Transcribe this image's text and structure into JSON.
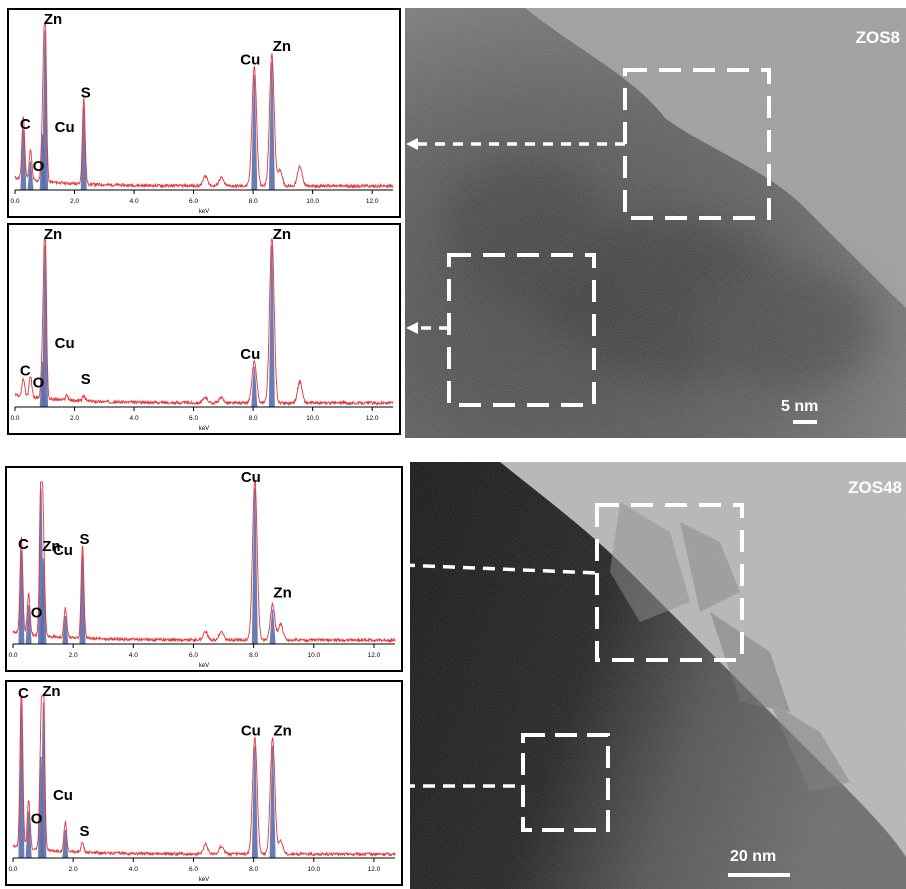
{
  "figures": [
    {
      "id": "zos8",
      "sample_label": "ZOS8",
      "scale_bar_label": "5 nm",
      "tem_tone": "light",
      "spectra": [
        {
          "x_axis_title": "keV",
          "chart_data": {
            "type": "line",
            "xlabel": "keV",
            "xlim": [
              0,
              12.7
            ],
            "x_ticks": [
              "0.0",
              "2.0",
              "4.0",
              "6.0",
              "8.0",
              "10.0",
              "12.0"
            ],
            "peaks_kev": [
              0.28,
              0.52,
              0.93,
              1.01,
              2.31,
              6.4,
              6.93,
              8.04,
              8.63,
              8.9,
              9.57
            ],
            "peak_heights": [
              0.38,
              0.18,
              0.35,
              1.0,
              0.52,
              0.06,
              0.05,
              0.72,
              0.8,
              0.1,
              0.12
            ],
            "annotations": [
              {
                "text": "Zn",
                "kev": 1.01
              },
              {
                "text": "C",
                "kev": 0.28
              },
              {
                "text": "O",
                "kev": 0.52
              },
              {
                "text": "Cu",
                "kev": 0.93
              },
              {
                "text": "S",
                "kev": 2.31
              },
              {
                "text": "Cu",
                "kev": 8.04
              },
              {
                "text": "Zn",
                "kev": 8.63
              }
            ]
          }
        },
        {
          "x_axis_title": "keV",
          "chart_data": {
            "type": "line",
            "xlabel": "keV",
            "xlim": [
              0,
              12.7
            ],
            "x_ticks": [
              "0.0",
              "2.0",
              "4.0",
              "6.0",
              "8.0",
              "10.0",
              "12.0"
            ],
            "peaks_kev": [
              0.28,
              0.52,
              0.93,
              1.01,
              1.74,
              2.31,
              6.4,
              6.93,
              8.04,
              8.63,
              9.57
            ],
            "peak_heights": [
              0.1,
              0.12,
              0.28,
              1.0,
              0.03,
              0.03,
              0.03,
              0.03,
              0.25,
              1.0,
              0.13
            ],
            "annotations": [
              {
                "text": "Zn",
                "kev": 1.01
              },
              {
                "text": "O",
                "kev": 0.52
              },
              {
                "text": "C",
                "kev": 0.28
              },
              {
                "text": "Cu",
                "kev": 0.93
              },
              {
                "text": "S",
                "kev": 2.31
              },
              {
                "text": "Zn",
                "kev": 8.63
              },
              {
                "text": "Cu",
                "kev": 8.04
              }
            ]
          }
        }
      ]
    },
    {
      "id": "zos48",
      "sample_label": "ZOS48",
      "scale_bar_label": "20 nm",
      "tem_tone": "dark",
      "spectra": [
        {
          "x_axis_title": "keV",
          "chart_data": {
            "type": "line",
            "xlabel": "keV",
            "xlim": [
              0,
              12.7
            ],
            "x_ticks": [
              "0.0",
              "2.0",
              "4.0",
              "6.0",
              "8.0",
              "10.0",
              "12.0"
            ],
            "peaks_kev": [
              0.28,
              0.52,
              0.93,
              1.01,
              1.74,
              2.31,
              6.4,
              6.93,
              8.04,
              8.63,
              8.9
            ],
            "peak_heights": [
              0.6,
              0.25,
              1.0,
              0.55,
              0.18,
              0.58,
              0.05,
              0.05,
              1.0,
              0.22,
              0.1
            ],
            "annotations": [
              {
                "text": "Cu",
                "kev": 0.93
              },
              {
                "text": "C",
                "kev": 0.28
              },
              {
                "text": "Zn",
                "kev": 1.01
              },
              {
                "text": "S",
                "kev": 2.31
              },
              {
                "text": "O",
                "kev": 0.52
              },
              {
                "text": "Cu",
                "kev": 8.04
              },
              {
                "text": "Zn",
                "kev": 8.63
              }
            ]
          }
        },
        {
          "x_axis_title": "keV",
          "chart_data": {
            "type": "line",
            "xlabel": "keV",
            "xlim": [
              0,
              12.7
            ],
            "x_ticks": [
              "0.0",
              "2.0",
              "4.0",
              "6.0",
              "8.0",
              "10.0",
              "12.0"
            ],
            "peaks_kev": [
              0.28,
              0.52,
              0.93,
              1.01,
              1.74,
              2.31,
              6.4,
              6.93,
              8.04,
              8.63,
              8.9
            ],
            "peak_heights": [
              1.0,
              0.3,
              0.65,
              1.0,
              0.18,
              0.06,
              0.06,
              0.05,
              0.72,
              0.72,
              0.08
            ],
            "annotations": [
              {
                "text": "C",
                "kev": 0.28
              },
              {
                "text": "Zn",
                "kev": 1.01
              },
              {
                "text": "Cu",
                "kev": 0.93
              },
              {
                "text": "O",
                "kev": 0.52
              },
              {
                "text": "S",
                "kev": 2.31
              },
              {
                "text": "Cu",
                "kev": 8.04
              },
              {
                "text": "Zn",
                "kev": 8.63
              }
            ]
          }
        }
      ]
    }
  ],
  "colors": {
    "spectrum_line": "#e8353a",
    "peak_fill": "#5a6ea8",
    "axis": "#000000",
    "dashed_box": "#ffffff"
  }
}
